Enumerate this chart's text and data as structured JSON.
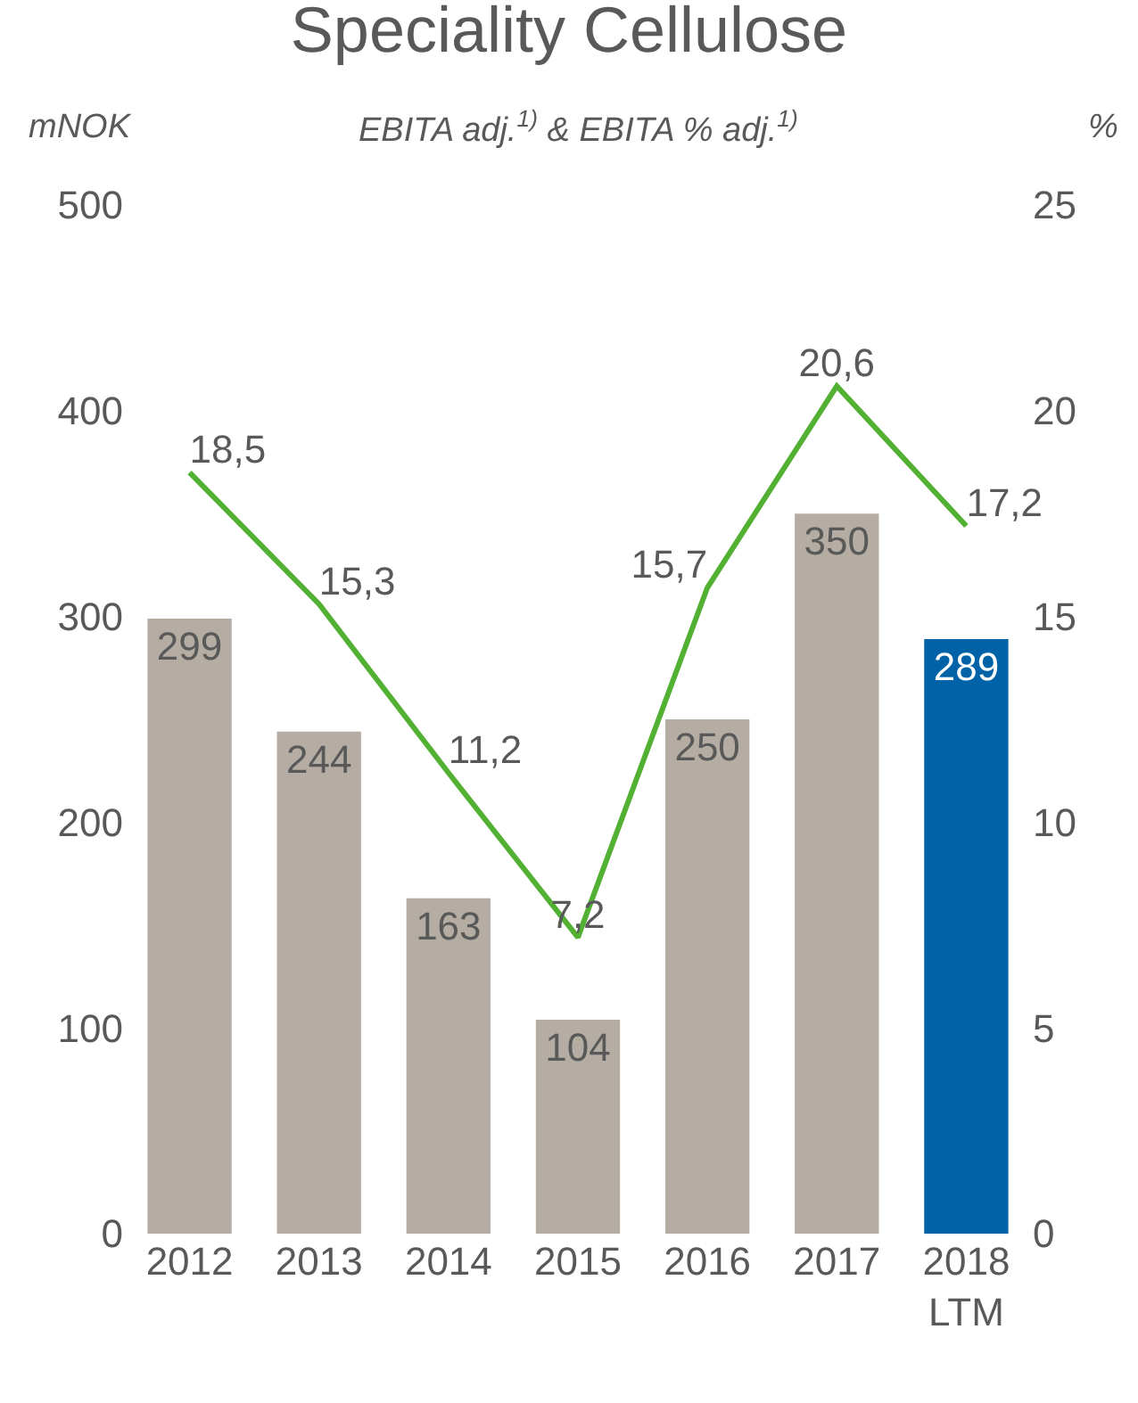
{
  "chart_data": {
    "type": "bar",
    "title": "Speciality Cellulose",
    "subtitle": "EBITA adj.$^{1)}$ & EBITA % adj.$^{1)}$",
    "ylabel": "mNOK",
    "y2label": "%",
    "categories": [
      "2012",
      "2013",
      "2014",
      "2015",
      "2016",
      "2017",
      "2018\nLTM"
    ],
    "series": [
      {
        "colors": [
          "#b5aca3",
          "#b5aca3",
          "#b5aca3",
          "#b5aca3",
          "#b5aca3",
          "#b5aca3",
          "#0063a7"
        ],
        "values": [
          299,
          244,
          163,
          104,
          250,
          350,
          289
        ]
      },
      {
        "type": "line",
        "axis": "y2",
        "color": "#52b033",
        "values": [
          18.5,
          15.3,
          11.2,
          7.2,
          15.7,
          20.6,
          17.2
        ],
        "value_labels": [
          "18,5",
          "15,3",
          "11,2",
          "7,2",
          "15,7",
          "20,6",
          "17,2"
        ]
      }
    ],
    "data_labels": true,
    "ylim": [
      0,
      500
    ],
    "yticks": [
      0,
      100,
      200,
      300,
      400,
      500
    ],
    "y2lim": [
      0,
      25
    ],
    "y2ticks": [
      0,
      5,
      10,
      15,
      20,
      25
    ],
    "marker": "none"
  }
}
